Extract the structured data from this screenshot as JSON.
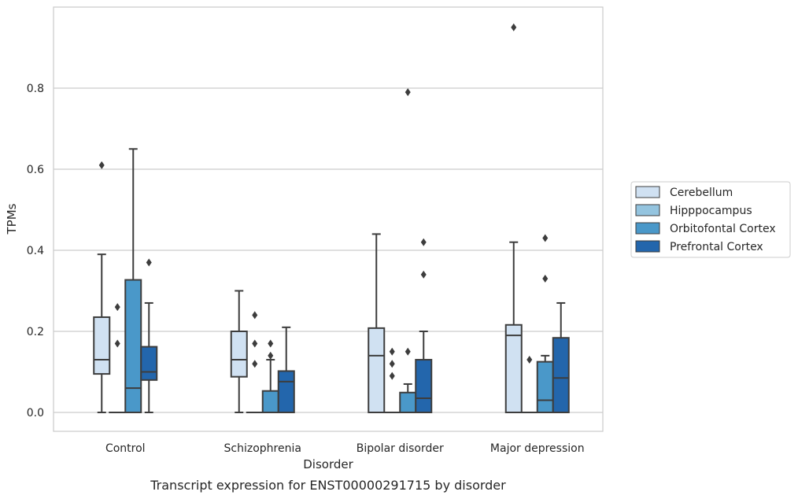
{
  "chart_data": {
    "type": "boxplot",
    "title": "Transcript expression for ENST00000291715 by disorder",
    "xlabel": "Disorder",
    "ylabel": "TPMs",
    "ylim": [
      -0.045,
      1.0
    ],
    "yticks": [
      0.0,
      0.2,
      0.4,
      0.6,
      0.8
    ],
    "ytick_labels": [
      "0.0",
      "0.2",
      "0.4",
      "0.6",
      "0.8"
    ],
    "grid": "horizontal",
    "legend_position": "right",
    "categories": [
      "Control",
      "Schizophrenia",
      "Bipolar disorder",
      "Major depression"
    ],
    "series": [
      {
        "name": "Cerebellum",
        "color": "#d0e1f2",
        "boxes": [
          {
            "whislo": 0.0,
            "q1": 0.095,
            "med": 0.13,
            "q3": 0.235,
            "whishi": 0.39,
            "fliers": [
              0.61
            ]
          },
          {
            "whislo": 0.0,
            "q1": 0.088,
            "med": 0.13,
            "q3": 0.2,
            "whishi": 0.3,
            "fliers": []
          },
          {
            "whislo": 0.0,
            "q1": 0.0,
            "med": 0.14,
            "q3": 0.208,
            "whishi": 0.44,
            "fliers": []
          },
          {
            "whislo": 0.0,
            "q1": 0.0,
            "med": 0.19,
            "q3": 0.216,
            "whishi": 0.42,
            "fliers": [
              0.95
            ]
          }
        ]
      },
      {
        "name": "Hipppocampus",
        "color": "#94c4df",
        "boxes": [
          {
            "whislo": 0.0,
            "q1": 0.0,
            "med": 0.0,
            "q3": 0.0,
            "whishi": 0.0,
            "fliers": [
              0.17,
              0.26
            ]
          },
          {
            "whislo": 0.0,
            "q1": 0.0,
            "med": 0.0,
            "q3": 0.0,
            "whishi": 0.0,
            "fliers": [
              0.12,
              0.17,
              0.24
            ]
          },
          {
            "whislo": 0.0,
            "q1": 0.0,
            "med": 0.0,
            "q3": 0.0,
            "whishi": 0.0,
            "fliers": [
              0.09,
              0.12,
              0.15
            ]
          },
          {
            "whislo": 0.0,
            "q1": 0.0,
            "med": 0.0,
            "q3": 0.0,
            "whishi": 0.0,
            "fliers": [
              0.13
            ]
          }
        ]
      },
      {
        "name": "Orbitofontal Cortex",
        "color": "#4a98c9",
        "boxes": [
          {
            "whislo": 0.0,
            "q1": 0.0,
            "med": 0.06,
            "q3": 0.327,
            "whishi": 0.65,
            "fliers": []
          },
          {
            "whislo": 0.0,
            "q1": 0.0,
            "med": 0.0,
            "q3": 0.053,
            "whishi": 0.13,
            "fliers": [
              0.14,
              0.17
            ]
          },
          {
            "whislo": 0.0,
            "q1": 0.0,
            "med": 0.0,
            "q3": 0.049,
            "whishi": 0.07,
            "fliers": [
              0.15,
              0.79
            ]
          },
          {
            "whislo": 0.0,
            "q1": 0.0,
            "med": 0.03,
            "q3": 0.125,
            "whishi": 0.14,
            "fliers": [
              0.33,
              0.43
            ]
          }
        ]
      },
      {
        "name": "Prefrontal Cortex",
        "color": "#2366ac",
        "boxes": [
          {
            "whislo": 0.0,
            "q1": 0.08,
            "med": 0.1,
            "q3": 0.162,
            "whishi": 0.27,
            "fliers": [
              0.37
            ]
          },
          {
            "whislo": 0.0,
            "q1": 0.0,
            "med": 0.076,
            "q3": 0.102,
            "whishi": 0.21,
            "fliers": []
          },
          {
            "whislo": 0.0,
            "q1": 0.0,
            "med": 0.035,
            "q3": 0.13,
            "whishi": 0.2,
            "fliers": [
              0.34,
              0.42
            ]
          },
          {
            "whislo": 0.0,
            "q1": 0.0,
            "med": 0.085,
            "q3": 0.184,
            "whishi": 0.27,
            "fliers": []
          }
        ]
      }
    ]
  }
}
